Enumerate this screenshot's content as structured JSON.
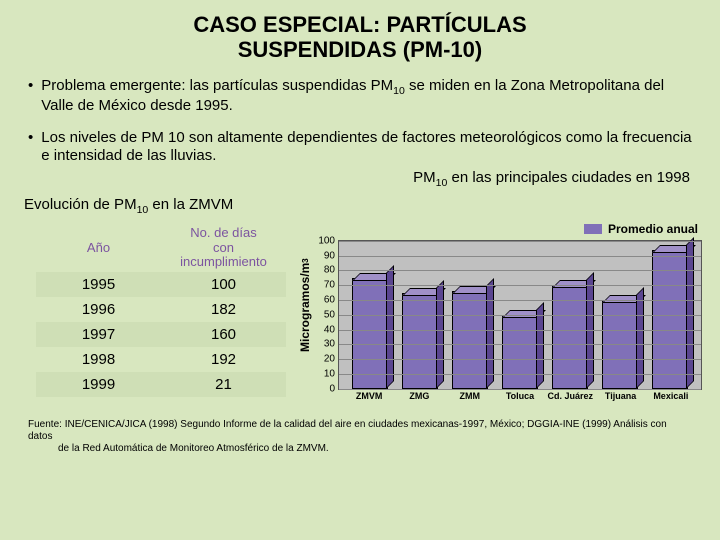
{
  "title_line1": "CASO ESPECIAL: PARTÍCULAS",
  "title_line2": "SUSPENDIDAS (PM-10)",
  "bullet1": "Problema emergente: las partículas suspendidas PM₁₀ se miden en la Zona Metropolitana del Valle de México desde 1995.",
  "bullet2": "Los niveles de PM 10 son altamente dependientes de factores meteorológicos como la frecuencia e intensidad de las lluvias.",
  "caption_right": "PM₁₀ en las principales ciudades en 1998",
  "section_left": "Evolución de PM₁₀ en la ZMVM",
  "table": {
    "header_year": "Año",
    "header_days": "No. de días con incumplimiento",
    "rows": [
      {
        "year": "1995",
        "days": "100"
      },
      {
        "year": "1996",
        "days": "182"
      },
      {
        "year": "1997",
        "days": "160"
      },
      {
        "year": "1998",
        "days": "192"
      },
      {
        "year": "1999",
        "days": "21"
      }
    ]
  },
  "chart": {
    "type": "bar",
    "ylabel": "Microgramos/m³",
    "legend": "Promedio anual",
    "ylim": [
      0,
      100
    ],
    "ytick_step": 10,
    "yticks": [
      0,
      10,
      20,
      30,
      40,
      50,
      60,
      70,
      80,
      90,
      100
    ],
    "bar_color": "#8070b8",
    "legend_swatch_color": "#8070b8",
    "plot_bg": "#c0c0c0",
    "grid_color": "#888888",
    "categories": [
      "ZMVM",
      "ZMG",
      "ZMM",
      "Toluca",
      "Cd. Juárez",
      "Tijuana",
      "Mexicali"
    ],
    "values": [
      75,
      65,
      66,
      50,
      70,
      60,
      94
    ]
  },
  "source_line1": "Fuente: INE/CENICA/JICA (1998) Segundo Informe de la calidad del aire en ciudades mexicanas-1997, México; DGGIA-INE (1999) Análisis con datos",
  "source_line2": "de la Red Automática de Monitoreo Atmosférico de la ZMVM."
}
